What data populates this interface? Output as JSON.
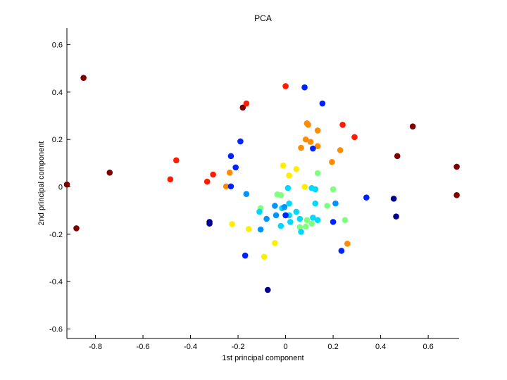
{
  "chart_data": {
    "type": "scatter",
    "title": "PCA",
    "xlabel": "1st principal component",
    "ylabel": "2nd principal component",
    "xlim": [
      -0.92,
      0.73
    ],
    "ylim": [
      -0.64,
      0.67
    ],
    "xticks": [
      -0.8,
      -0.6,
      -0.4,
      -0.2,
      0,
      0.2,
      0.4,
      0.6
    ],
    "xtick_labels": [
      "-0.8",
      "-0.6",
      "-0.4",
      "-0.2",
      "0",
      "0.2",
      "0.4",
      "0.6"
    ],
    "yticks": [
      -0.6,
      -0.4,
      -0.2,
      0,
      0.2,
      0.4,
      0.6
    ],
    "ytick_labels": [
      "-0.6",
      "-0.4",
      "-0.2",
      "0",
      "0.2",
      "0.4",
      "0.6"
    ],
    "grid": false,
    "colors": {
      "darkred": "#800000",
      "red": "#ff1a00",
      "orange": "#ff8c00",
      "yellow": "#ffee00",
      "lightgreen": "#80ff80",
      "cyan": "#00d8ff",
      "lightblue": "#0094ff",
      "blue": "#0022ff",
      "darkblue": "#000090"
    },
    "points": [
      {
        "x": -0.85,
        "y": 0.46,
        "c": "darkred"
      },
      {
        "x": -0.74,
        "y": 0.06,
        "c": "darkred"
      },
      {
        "x": -0.92,
        "y": 0.01,
        "c": "darkred"
      },
      {
        "x": -0.88,
        "y": -0.175,
        "c": "darkred"
      },
      {
        "x": -0.18,
        "y": 0.335,
        "c": "darkred"
      },
      {
        "x": 0.535,
        "y": 0.255,
        "c": "darkred"
      },
      {
        "x": 0.47,
        "y": 0.13,
        "c": "darkred"
      },
      {
        "x": 0.72,
        "y": 0.085,
        "c": "darkred"
      },
      {
        "x": 0.72,
        "y": -0.035,
        "c": "darkred"
      },
      {
        "x": 0.0,
        "y": 0.425,
        "c": "red"
      },
      {
        "x": -0.165,
        "y": 0.352,
        "c": "red"
      },
      {
        "x": -0.46,
        "y": 0.112,
        "c": "red"
      },
      {
        "x": -0.485,
        "y": 0.032,
        "c": "red"
      },
      {
        "x": -0.305,
        "y": 0.052,
        "c": "red"
      },
      {
        "x": -0.33,
        "y": 0.022,
        "c": "red"
      },
      {
        "x": 0.24,
        "y": 0.262,
        "c": "red"
      },
      {
        "x": 0.29,
        "y": 0.21,
        "c": "red"
      },
      {
        "x": 0.09,
        "y": 0.268,
        "c": "orange"
      },
      {
        "x": 0.095,
        "y": 0.262,
        "c": "orange"
      },
      {
        "x": 0.135,
        "y": 0.238,
        "c": "orange"
      },
      {
        "x": 0.085,
        "y": 0.2,
        "c": "orange"
      },
      {
        "x": 0.105,
        "y": 0.19,
        "c": "orange"
      },
      {
        "x": 0.135,
        "y": 0.172,
        "c": "orange"
      },
      {
        "x": 0.065,
        "y": 0.165,
        "c": "orange"
      },
      {
        "x": 0.23,
        "y": 0.155,
        "c": "orange"
      },
      {
        "x": 0.195,
        "y": 0.105,
        "c": "orange"
      },
      {
        "x": -0.235,
        "y": 0.06,
        "c": "orange"
      },
      {
        "x": -0.25,
        "y": 0.002,
        "c": "orange"
      },
      {
        "x": 0.26,
        "y": -0.24,
        "c": "orange"
      },
      {
        "x": -0.01,
        "y": 0.09,
        "c": "yellow"
      },
      {
        "x": 0.045,
        "y": 0.075,
        "c": "yellow"
      },
      {
        "x": 0.015,
        "y": 0.048,
        "c": "yellow"
      },
      {
        "x": 0.08,
        "y": 0.0,
        "c": "yellow"
      },
      {
        "x": -0.225,
        "y": -0.157,
        "c": "yellow"
      },
      {
        "x": -0.155,
        "y": -0.178,
        "c": "yellow"
      },
      {
        "x": -0.045,
        "y": -0.237,
        "c": "yellow"
      },
      {
        "x": -0.09,
        "y": -0.295,
        "c": "yellow"
      },
      {
        "x": 0.135,
        "y": 0.058,
        "c": "lightgreen"
      },
      {
        "x": -0.035,
        "y": -0.032,
        "c": "lightgreen"
      },
      {
        "x": -0.02,
        "y": -0.035,
        "c": "lightgreen"
      },
      {
        "x": 0.2,
        "y": -0.01,
        "c": "lightgreen"
      },
      {
        "x": -0.105,
        "y": -0.09,
        "c": "lightgreen"
      },
      {
        "x": 0.175,
        "y": -0.08,
        "c": "lightgreen"
      },
      {
        "x": 0.25,
        "y": -0.14,
        "c": "lightgreen"
      },
      {
        "x": 0.09,
        "y": -0.14,
        "c": "lightgreen"
      },
      {
        "x": 0.06,
        "y": -0.17,
        "c": "lightgreen"
      },
      {
        "x": 0.085,
        "y": -0.168,
        "c": "lightgreen"
      },
      {
        "x": 0.11,
        "y": -0.155,
        "c": "lightgreen"
      },
      {
        "x": 0.11,
        "y": -0.005,
        "c": "cyan"
      },
      {
        "x": 0.01,
        "y": -0.005,
        "c": "cyan"
      },
      {
        "x": 0.125,
        "y": -0.01,
        "c": "cyan"
      },
      {
        "x": 0.015,
        "y": -0.07,
        "c": "cyan"
      },
      {
        "x": 0.125,
        "y": -0.07,
        "c": "cyan"
      },
      {
        "x": -0.015,
        "y": -0.09,
        "c": "cyan"
      },
      {
        "x": -0.11,
        "y": -0.105,
        "c": "cyan"
      },
      {
        "x": 0.045,
        "y": -0.105,
        "c": "cyan"
      },
      {
        "x": 0.015,
        "y": -0.12,
        "c": "cyan"
      },
      {
        "x": 0.06,
        "y": -0.135,
        "c": "cyan"
      },
      {
        "x": 0.115,
        "y": -0.13,
        "c": "cyan"
      },
      {
        "x": 0.135,
        "y": -0.14,
        "c": "cyan"
      },
      {
        "x": 0.02,
        "y": -0.148,
        "c": "cyan"
      },
      {
        "x": -0.02,
        "y": -0.165,
        "c": "cyan"
      },
      {
        "x": 0.065,
        "y": -0.19,
        "c": "cyan"
      },
      {
        "x": -0.165,
        "y": -0.03,
        "c": "lightblue"
      },
      {
        "x": -0.045,
        "y": -0.08,
        "c": "lightblue"
      },
      {
        "x": -0.005,
        "y": -0.085,
        "c": "lightblue"
      },
      {
        "x": 0.21,
        "y": -0.07,
        "c": "lightblue"
      },
      {
        "x": -0.04,
        "y": -0.12,
        "c": "lightblue"
      },
      {
        "x": -0.08,
        "y": -0.135,
        "c": "lightblue"
      },
      {
        "x": -0.105,
        "y": -0.18,
        "c": "lightblue"
      },
      {
        "x": 0.08,
        "y": 0.42,
        "c": "blue"
      },
      {
        "x": 0.155,
        "y": 0.352,
        "c": "blue"
      },
      {
        "x": -0.19,
        "y": 0.192,
        "c": "blue"
      },
      {
        "x": 0.115,
        "y": 0.162,
        "c": "blue"
      },
      {
        "x": -0.23,
        "y": 0.13,
        "c": "blue"
      },
      {
        "x": -0.21,
        "y": 0.082,
        "c": "blue"
      },
      {
        "x": -0.23,
        "y": 0.002,
        "c": "blue"
      },
      {
        "x": 0.0,
        "y": -0.12,
        "c": "blue"
      },
      {
        "x": 0.2,
        "y": -0.148,
        "c": "blue"
      },
      {
        "x": 0.34,
        "y": -0.045,
        "c": "blue"
      },
      {
        "x": -0.17,
        "y": -0.29,
        "c": "blue"
      },
      {
        "x": 0.235,
        "y": -0.27,
        "c": "blue"
      },
      {
        "x": -0.32,
        "y": -0.148,
        "c": "darkblue"
      },
      {
        "x": -0.32,
        "y": -0.155,
        "c": "darkblue"
      },
      {
        "x": 0.455,
        "y": -0.05,
        "c": "darkblue"
      },
      {
        "x": 0.465,
        "y": -0.125,
        "c": "darkblue"
      },
      {
        "x": -0.075,
        "y": -0.435,
        "c": "darkblue"
      }
    ]
  }
}
